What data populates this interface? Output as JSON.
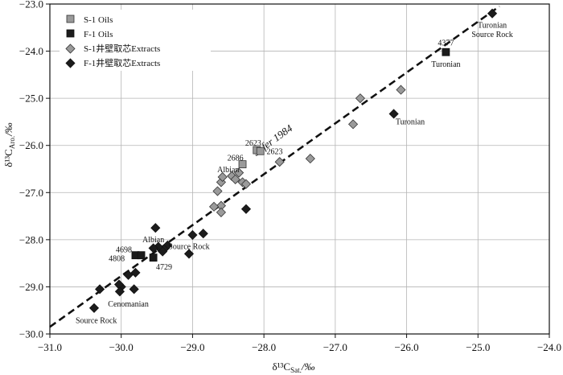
{
  "chart_data": {
    "type": "scatter",
    "xlabel": "δ¹³C",
    "xlabel_sub": "Sat.",
    "xlabel_unit": "/‰",
    "ylabel": "δ¹³C",
    "ylabel_sub": "Aro.",
    "ylabel_unit": "/‰",
    "xlim": [
      -31.0,
      -24.0
    ],
    "ylim": [
      -30.0,
      -23.0
    ],
    "x_ticks": [
      -31.0,
      -30.0,
      -29.0,
      -28.0,
      -27.0,
      -26.0,
      -25.0,
      -24.0
    ],
    "x_tick_labels": [
      "−31.0",
      "−30.0",
      "−29.0",
      "−28.0",
      "−27.0",
      "−26.0",
      "−25.0",
      "−24.0"
    ],
    "y_ticks": [
      -23.0,
      -24.0,
      -25.0,
      -26.0,
      -27.0,
      -28.0,
      -29.0,
      -30.0
    ],
    "y_tick_labels": [
      "−23.0",
      "−24.0",
      "−25.0",
      "−26.0",
      "−27.0",
      "−28.0",
      "−29.0",
      "−30.0"
    ],
    "grid": true,
    "legend_position": "top-left",
    "colors": {
      "gray": "#9a9a9a",
      "dark": "#1c1c1c"
    },
    "series": [
      {
        "name": "S-1 Oils",
        "marker": "square",
        "color": "#9a9a9a",
        "points": [
          {
            "x": -28.1,
            "y": -26.1
          },
          {
            "x": -28.05,
            "y": -26.12
          },
          {
            "x": -28.3,
            "y": -26.4
          }
        ]
      },
      {
        "name": "F-1 Oils",
        "marker": "square",
        "color": "#1c1c1c",
        "points": [
          {
            "x": -25.45,
            "y": -24.02
          },
          {
            "x": -29.8,
            "y": -28.33
          },
          {
            "x": -29.72,
            "y": -28.33
          },
          {
            "x": -29.55,
            "y": -28.38
          }
        ]
      },
      {
        "name": "S-1井壁取芯Extracts",
        "marker": "diamond",
        "color": "#9a9a9a",
        "points": [
          {
            "x": -28.6,
            "y": -26.78
          },
          {
            "x": -28.58,
            "y": -26.67
          },
          {
            "x": -28.45,
            "y": -26.65
          },
          {
            "x": -28.4,
            "y": -26.72
          },
          {
            "x": -28.35,
            "y": -26.58
          },
          {
            "x": -28.3,
            "y": -26.78
          },
          {
            "x": -28.25,
            "y": -26.82
          },
          {
            "x": -28.65,
            "y": -26.97
          },
          {
            "x": -28.6,
            "y": -27.28
          },
          {
            "x": -28.6,
            "y": -27.42
          },
          {
            "x": -28.7,
            "y": -27.3
          },
          {
            "x": -27.78,
            "y": -26.35
          },
          {
            "x": -27.35,
            "y": -26.28
          },
          {
            "x": -26.75,
            "y": -25.55
          },
          {
            "x": -26.65,
            "y": -25.0
          },
          {
            "x": -26.08,
            "y": -24.82
          }
        ]
      },
      {
        "name": "F-1井壁取芯Extracts",
        "marker": "diamond",
        "color": "#1c1c1c",
        "points": [
          {
            "x": -24.8,
            "y": -23.2
          },
          {
            "x": -26.18,
            "y": -25.33
          },
          {
            "x": -28.25,
            "y": -27.35
          },
          {
            "x": -28.85,
            "y": -27.87
          },
          {
            "x": -29.0,
            "y": -27.9
          },
          {
            "x": -29.05,
            "y": -28.3
          },
          {
            "x": -29.35,
            "y": -28.12
          },
          {
            "x": -29.4,
            "y": -28.2
          },
          {
            "x": -29.42,
            "y": -28.25
          },
          {
            "x": -29.48,
            "y": -28.15
          },
          {
            "x": -29.52,
            "y": -27.75
          },
          {
            "x": -29.55,
            "y": -28.18
          },
          {
            "x": -29.8,
            "y": -28.7
          },
          {
            "x": -29.9,
            "y": -28.75
          },
          {
            "x": -29.82,
            "y": -29.05
          },
          {
            "x": -30.0,
            "y": -29.0
          },
          {
            "x": -30.03,
            "y": -28.95
          },
          {
            "x": -30.02,
            "y": -29.1
          },
          {
            "x": -30.3,
            "y": -29.05
          },
          {
            "x": -30.38,
            "y": -29.45
          }
        ]
      }
    ],
    "reference_line": {
      "name": "Sofer 1984",
      "points": [
        [
          -31.0,
          -29.85
        ],
        [
          -24.7,
          -23.05
        ]
      ]
    },
    "annotations": [
      {
        "text": "Turonian",
        "x": -24.8,
        "y": -23.45,
        "anchor": "middle"
      },
      {
        "text": "Source Rock",
        "x": -24.8,
        "y": -23.65,
        "anchor": "middle"
      },
      {
        "text": "4377",
        "x": -25.45,
        "y": -23.83,
        "anchor": "middle"
      },
      {
        "text": "Turonian",
        "x": -25.45,
        "y": -24.28,
        "anchor": "middle"
      },
      {
        "text": "Turonian",
        "x": -25.95,
        "y": -25.5,
        "anchor": "middle"
      },
      {
        "text": "2623",
        "x": -28.15,
        "y": -25.95,
        "anchor": "middle"
      },
      {
        "text": "2623",
        "x": -27.85,
        "y": -26.13,
        "anchor": "middle"
      },
      {
        "text": "2686",
        "x": -28.4,
        "y": -26.27,
        "anchor": "middle"
      },
      {
        "text": "Albian",
        "x": -28.5,
        "y": -26.52,
        "anchor": "middle"
      },
      {
        "text": "Albian",
        "x": -29.55,
        "y": -28.0,
        "anchor": "middle"
      },
      {
        "text": "Source Rock",
        "x": -29.05,
        "y": -28.15,
        "anchor": "middle"
      },
      {
        "text": "4698",
        "x": -29.85,
        "y": -28.22,
        "anchor": "end"
      },
      {
        "text": "4808",
        "x": -29.95,
        "y": -28.4,
        "anchor": "end"
      },
      {
        "text": "4729",
        "x": -29.4,
        "y": -28.58,
        "anchor": "middle"
      },
      {
        "text": "Cenomanian",
        "x": -29.9,
        "y": -29.37,
        "anchor": "middle"
      },
      {
        "text": "Source Rock",
        "x": -30.35,
        "y": -29.72,
        "anchor": "middle"
      }
    ]
  }
}
